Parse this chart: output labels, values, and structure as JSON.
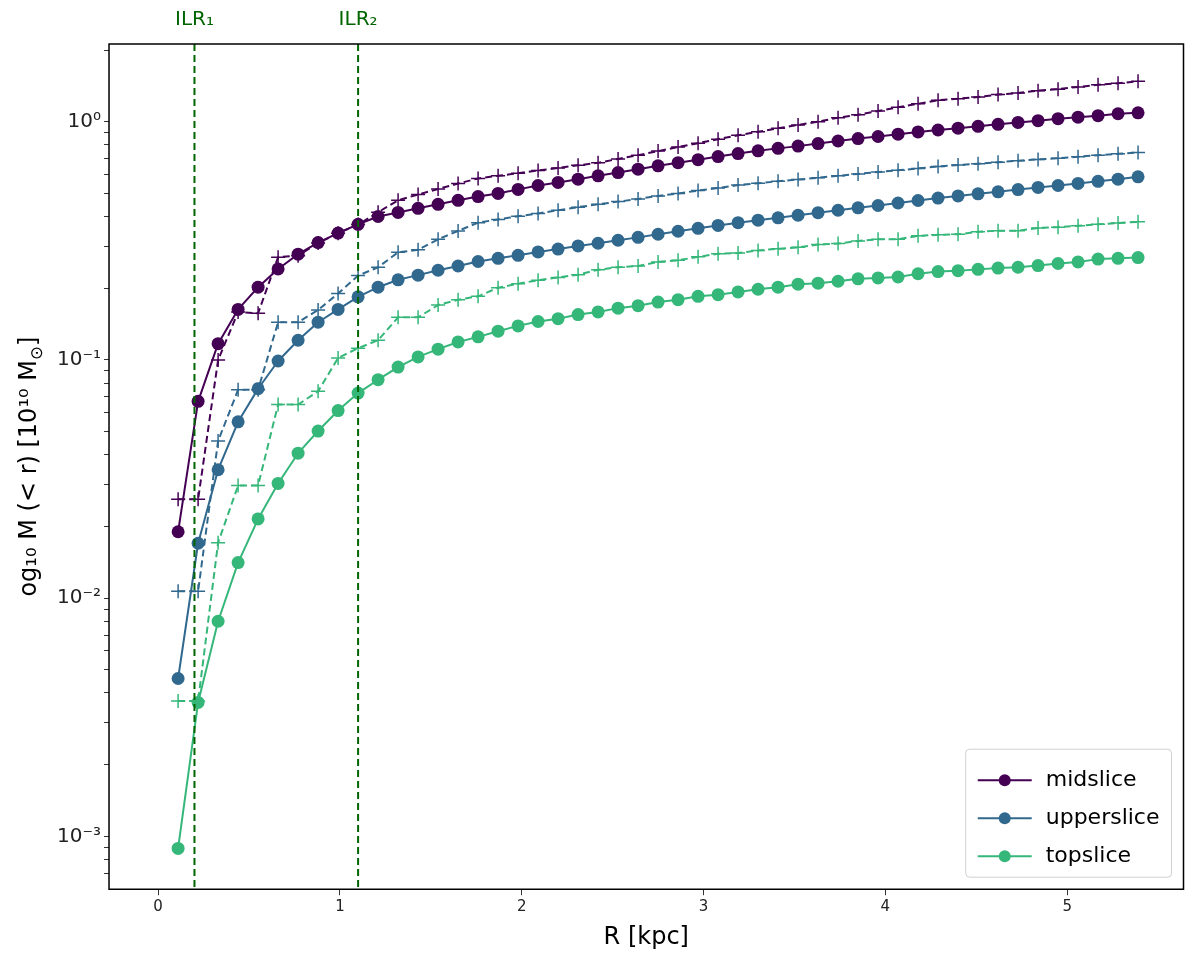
{
  "chart_data": {
    "type": "line",
    "xlabel": "R [kpc]",
    "ylabel": "og₁₀ M (< r) [10¹⁰ M$_{⊙}$]",
    "log": "y",
    "legend": "bottom right",
    "xlim": [
      -0.27,
      5.64
    ],
    "xticks": [
      0,
      1,
      2,
      3,
      4,
      5
    ],
    "ylim": [
      0.00062,
      2.12
    ],
    "yticks": [
      {
        "value": 0.0007,
        "label": null
      },
      {
        "value": 0.0008,
        "label": null
      },
      {
        "value": 0.0009,
        "label": null
      },
      {
        "value": 0.001,
        "label": "10⁻³"
      },
      {
        "value": 0.002,
        "label": null
      },
      {
        "value": 0.003,
        "label": null
      },
      {
        "value": 0.004,
        "label": null
      },
      {
        "value": 0.005,
        "label": null
      },
      {
        "value": 0.006,
        "label": null
      },
      {
        "value": 0.007,
        "label": null
      },
      {
        "value": 0.008,
        "label": null
      },
      {
        "value": 0.009,
        "label": null
      },
      {
        "value": 0.01,
        "label": "10⁻²"
      },
      {
        "value": 0.02,
        "label": null
      },
      {
        "value": 0.03,
        "label": null
      },
      {
        "value": 0.04,
        "label": null
      },
      {
        "value": 0.05,
        "label": null
      },
      {
        "value": 0.06,
        "label": null
      },
      {
        "value": 0.07,
        "label": null
      },
      {
        "value": 0.08,
        "label": null
      },
      {
        "value": 0.09,
        "label": null
      },
      {
        "value": 0.1,
        "label": "10⁻¹"
      },
      {
        "value": 0.2,
        "label": null
      },
      {
        "value": 0.3,
        "label": null
      },
      {
        "value": 0.4,
        "label": null
      },
      {
        "value": 0.5,
        "label": null
      },
      {
        "value": 0.6,
        "label": null
      },
      {
        "value": 0.7,
        "label": null
      },
      {
        "value": 0.8,
        "label": null
      },
      {
        "value": 0.9,
        "label": null
      },
      {
        "value": 1,
        "label": "10⁰"
      },
      {
        "value": 2,
        "label": null
      }
    ],
    "ref_lines": [
      {
        "axis": "x",
        "value": 0.2,
        "label": "ILR₁",
        "color": "#006400",
        "line_style": "dashed"
      },
      {
        "axis": "x",
        "value": 1.1,
        "label": "ILR₂",
        "color": "#006400",
        "line_style": "dashed"
      }
    ],
    "x": [
      0.11,
      0.22,
      0.33,
      0.44,
      0.55,
      0.66,
      0.77,
      0.88,
      0.99,
      1.1,
      1.21,
      1.32,
      1.43,
      1.54,
      1.65,
      1.76,
      1.87,
      1.98,
      2.09,
      2.2,
      2.31,
      2.42,
      2.53,
      2.64,
      2.75,
      2.86,
      2.97,
      3.08,
      3.19,
      3.3,
      3.41,
      3.52,
      3.63,
      3.74,
      3.85,
      3.96,
      4.07,
      4.18,
      4.29,
      4.4,
      4.51,
      4.62,
      4.73,
      4.84,
      4.95,
      5.06,
      5.17,
      5.28,
      5.39
    ],
    "series": [
      {
        "color": "#440154",
        "line_style": "dashed",
        "marker": "cross",
        "values": [
          0.026,
          0.026,
          0.1,
          0.159,
          0.157,
          0.27,
          0.274,
          0.31,
          0.34,
          0.37,
          0.417,
          0.468,
          0.495,
          0.522,
          0.55,
          0.578,
          0.593,
          0.608,
          0.624,
          0.64,
          0.656,
          0.672,
          0.698,
          0.724,
          0.753,
          0.783,
          0.813,
          0.845,
          0.877,
          0.908,
          0.938,
          0.97,
          1.0,
          1.04,
          1.07,
          1.11,
          1.15,
          1.19,
          1.23,
          1.25,
          1.27,
          1.3,
          1.32,
          1.35,
          1.37,
          1.4,
          1.43,
          1.45,
          1.48
        ]
      },
      {
        "color": "#31688e",
        "line_style": "dashed",
        "marker": "cross",
        "values": [
          0.0107,
          0.0107,
          0.0457,
          0.075,
          0.075,
          0.144,
          0.144,
          0.162,
          0.19,
          0.226,
          0.245,
          0.283,
          0.29,
          0.321,
          0.348,
          0.377,
          0.389,
          0.401,
          0.412,
          0.425,
          0.438,
          0.45,
          0.462,
          0.474,
          0.488,
          0.5,
          0.514,
          0.527,
          0.542,
          0.552,
          0.562,
          0.572,
          0.582,
          0.593,
          0.604,
          0.615,
          0.625,
          0.637,
          0.649,
          0.658,
          0.667,
          0.676,
          0.686,
          0.695,
          0.703,
          0.713,
          0.723,
          0.733,
          0.743
        ]
      },
      {
        "color": "#35b779",
        "line_style": "dashed",
        "marker": "cross",
        "values": [
          0.0037,
          0.0037,
          0.0171,
          0.0297,
          0.0297,
          0.065,
          0.065,
          0.0738,
          0.102,
          0.112,
          0.121,
          0.151,
          0.151,
          0.17,
          0.179,
          0.185,
          0.201,
          0.209,
          0.216,
          0.222,
          0.228,
          0.239,
          0.245,
          0.248,
          0.258,
          0.262,
          0.271,
          0.279,
          0.281,
          0.288,
          0.293,
          0.297,
          0.305,
          0.308,
          0.316,
          0.321,
          0.321,
          0.332,
          0.335,
          0.337,
          0.345,
          0.349,
          0.349,
          0.358,
          0.361,
          0.366,
          0.371,
          0.376,
          0.38
        ]
      },
      {
        "name": "midslice",
        "color": "#440154",
        "line_style": "solid",
        "marker": "circle",
        "values": [
          0.019,
          0.067,
          0.117,
          0.163,
          0.202,
          0.241,
          0.278,
          0.311,
          0.341,
          0.371,
          0.4,
          0.416,
          0.433,
          0.45,
          0.468,
          0.485,
          0.5,
          0.52,
          0.54,
          0.556,
          0.574,
          0.593,
          0.612,
          0.632,
          0.653,
          0.673,
          0.693,
          0.714,
          0.735,
          0.755,
          0.773,
          0.79,
          0.81,
          0.83,
          0.85,
          0.867,
          0.887,
          0.906,
          0.923,
          0.94,
          0.957,
          0.975,
          0.993,
          1.01,
          1.03,
          1.045,
          1.06,
          1.08,
          1.09
        ]
      },
      {
        "name": "upperslice",
        "color": "#31688e",
        "line_style": "solid",
        "marker": "circle",
        "values": [
          0.0046,
          0.017,
          0.0346,
          0.055,
          0.0757,
          0.099,
          0.121,
          0.144,
          0.163,
          0.184,
          0.202,
          0.217,
          0.227,
          0.238,
          0.248,
          0.259,
          0.267,
          0.275,
          0.284,
          0.292,
          0.301,
          0.309,
          0.318,
          0.327,
          0.337,
          0.347,
          0.357,
          0.367,
          0.377,
          0.386,
          0.395,
          0.405,
          0.415,
          0.425,
          0.435,
          0.445,
          0.456,
          0.467,
          0.478,
          0.488,
          0.498,
          0.508,
          0.519,
          0.53,
          0.54,
          0.551,
          0.562,
          0.574,
          0.587
        ]
      },
      {
        "name": "topslice",
        "color": "#35b779",
        "line_style": "solid",
        "marker": "circle",
        "values": [
          0.00089,
          0.00365,
          0.008,
          0.0141,
          0.0215,
          0.0303,
          0.0406,
          0.0503,
          0.0613,
          0.0726,
          0.0826,
          0.0933,
          0.103,
          0.111,
          0.119,
          0.125,
          0.132,
          0.139,
          0.145,
          0.149,
          0.155,
          0.159,
          0.165,
          0.169,
          0.175,
          0.179,
          0.185,
          0.188,
          0.193,
          0.198,
          0.202,
          0.208,
          0.21,
          0.214,
          0.219,
          0.221,
          0.223,
          0.23,
          0.235,
          0.237,
          0.24,
          0.243,
          0.245,
          0.249,
          0.254,
          0.258,
          0.265,
          0.267,
          0.269
        ]
      }
    ]
  }
}
